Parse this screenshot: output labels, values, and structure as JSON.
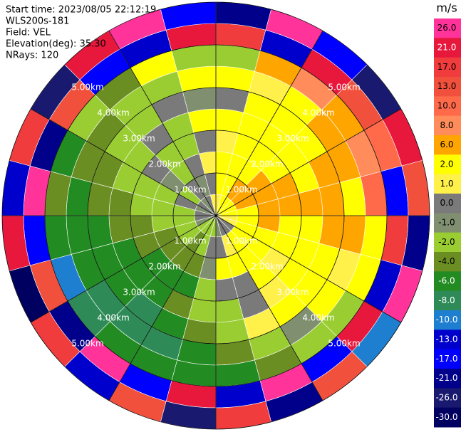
{
  "chart_data": {
    "type": "ppi",
    "header": [
      "Start time: 2023/08/05 22:12:19",
      "WLS200s-181",
      "Field: VEL",
      "Elevation(deg): 35.30",
      "NRays: 120"
    ],
    "azimuths": [
      0,
      15,
      30,
      45,
      60,
      75,
      90,
      105,
      120,
      135,
      150,
      165,
      180,
      195,
      210,
      225,
      240,
      255,
      270,
      285,
      300,
      315,
      330,
      345
    ],
    "ranges": [
      0,
      0.5,
      1,
      1.5,
      2,
      2.5,
      3,
      3.5,
      4,
      4.5
    ],
    "rlim": [
      0,
      5
    ],
    "rings": [
      {
        "value": 1,
        "label": "1.00km"
      },
      {
        "value": 2,
        "label": "2.00km"
      },
      {
        "value": 3,
        "label": "3.00km"
      },
      {
        "value": 4,
        "label": "4.00km"
      },
      {
        "value": 5,
        "label": "5.00km"
      }
    ],
    "values": [
      [
        1,
        2,
        2,
        1,
        2,
        0,
        2,
        -2,
        17,
        -21
      ],
      [
        2,
        2,
        2,
        2,
        2,
        2,
        1,
        6,
        -13,
        26
      ],
      [
        2,
        6,
        2,
        2,
        2,
        2,
        2,
        8,
        21,
        -17
      ],
      [
        2,
        6,
        6,
        2,
        2,
        2,
        6,
        6,
        13,
        -26
      ],
      [
        2,
        6,
        6,
        6,
        2,
        6,
        6,
        8,
        10,
        21
      ],
      [
        2,
        2,
        6,
        6,
        6,
        6,
        2,
        10,
        -17,
        13
      ],
      [
        1,
        2,
        6,
        2,
        2,
        6,
        6,
        2,
        17,
        -21
      ],
      [
        1,
        2,
        2,
        2,
        2,
        2,
        1,
        2,
        -13,
        26
      ],
      [
        0,
        2,
        2,
        1,
        2,
        2,
        2,
        -2,
        21,
        -10
      ],
      [
        0,
        2,
        2,
        2,
        1,
        2,
        -1,
        -2,
        -17,
        13
      ],
      [
        0,
        1,
        2,
        0,
        0,
        1,
        -2,
        -4,
        26,
        -21
      ],
      [
        -1,
        0,
        2,
        0,
        -2,
        -2,
        -4,
        -6,
        -13,
        17
      ],
      [
        -2,
        0,
        -1,
        -2,
        -2,
        -4,
        -6,
        -6,
        21,
        -26
      ],
      [
        -2,
        -2,
        -4,
        -6,
        -4,
        -6,
        -8,
        -6,
        -17,
        13
      ],
      [
        -2,
        -4,
        -4,
        -6,
        -6,
        -8,
        -8,
        -6,
        26,
        -13
      ],
      [
        -2,
        -2,
        -4,
        -6,
        -6,
        -6,
        -8,
        -8,
        -21,
        17
      ],
      [
        -1,
        -2,
        -4,
        -4,
        -6,
        -6,
        -6,
        -10,
        13,
        -30
      ],
      [
        0,
        -2,
        -2,
        -4,
        -4,
        -6,
        -6,
        -6,
        -17,
        21
      ],
      [
        0,
        -2,
        -2,
        -2,
        -4,
        -4,
        -6,
        -4,
        26,
        -13
      ],
      [
        -1,
        0,
        -2,
        -2,
        -2,
        -4,
        -4,
        -6,
        -21,
        17
      ],
      [
        0,
        -2,
        -1,
        0,
        -2,
        -2,
        -4,
        -2,
        13,
        -26
      ],
      [
        -1,
        0,
        -2,
        -2,
        0,
        -2,
        -2,
        -4,
        -17,
        21
      ],
      [
        0,
        -1,
        0,
        -2,
        -2,
        0,
        -2,
        2,
        -13,
        26
      ],
      [
        1,
        0,
        1,
        0,
        2,
        -1,
        2,
        -2,
        21,
        -17
      ]
    ],
    "colorbar": {
      "title": "m/s",
      "ticks": [
        {
          "value": 26,
          "label": "26.0"
        },
        {
          "value": 21,
          "label": "21.0"
        },
        {
          "value": 17,
          "label": "17.0"
        },
        {
          "value": 13,
          "label": "13.0"
        },
        {
          "value": 10,
          "label": "10.0"
        },
        {
          "value": 8,
          "label": "8.0"
        },
        {
          "value": 6,
          "label": "6.0"
        },
        {
          "value": 2,
          "label": "2.0"
        },
        {
          "value": 1,
          "label": "1.0"
        },
        {
          "value": 0,
          "label": "0.0"
        },
        {
          "value": -1,
          "label": "-1.0"
        },
        {
          "value": -2,
          "label": "-2.0"
        },
        {
          "value": -4,
          "label": "-4.0"
        },
        {
          "value": -6,
          "label": "-6.0"
        },
        {
          "value": -8,
          "label": "-8.0"
        },
        {
          "value": -10,
          "label": "-10.0"
        },
        {
          "value": -13,
          "label": "-13.0"
        },
        {
          "value": -17,
          "label": "-17.0"
        },
        {
          "value": -21,
          "label": "-21.0"
        },
        {
          "value": -26,
          "label": "-26.0"
        },
        {
          "value": -30,
          "label": "-30.0"
        }
      ],
      "colors": [
        "#ff3399",
        "#e8173c",
        "#f03c3c",
        "#f0503c",
        "#ff6a4a",
        "#ff8c5a",
        "#ffa500",
        "#ffff00",
        "#fff04a",
        "#7a7a7a",
        "#7f8f70",
        "#9acd32",
        "#6b8e23",
        "#228b22",
        "#2e8b57",
        "#1e7fd0",
        "#0000cd",
        "#0000ff",
        "#00008b",
        "#191970",
        "#000060"
      ]
    }
  }
}
